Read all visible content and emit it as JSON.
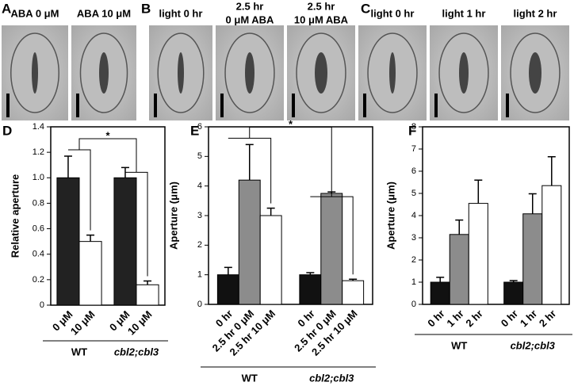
{
  "image_panels": [
    {
      "letter": "A",
      "labels": [
        [
          "ABA 0 μM"
        ],
        [
          "ABA 10 μM"
        ]
      ]
    },
    {
      "letter": "B",
      "labels": [
        [
          "light 0 hr"
        ],
        [
          "2.5 hr",
          "0 μM ABA"
        ],
        [
          "2.5 hr",
          "10 μM ABA"
        ]
      ]
    },
    {
      "letter": "C",
      "labels": [
        [
          "light 0 hr"
        ],
        [
          "light 1 hr"
        ],
        [
          "light 2 hr"
        ]
      ]
    }
  ],
  "chart_data": [
    {
      "type": "bar",
      "letter": "D",
      "ylabel": "Relative aperture",
      "categories": [
        "0 μM",
        "10 μM",
        "0 μM",
        "10 μM"
      ],
      "values": [
        1.0,
        0.5,
        1.0,
        0.16
      ],
      "errors": [
        0.17,
        0.05,
        0.08,
        0.03
      ],
      "colors": [
        "#222222",
        "#ffffff",
        "#222222",
        "#ffffff"
      ],
      "groups": [
        "WT",
        "cbl2;cbl3"
      ],
      "significance": "*",
      "ylim": [
        0,
        1.4
      ],
      "yticks": [
        0,
        0.2,
        0.4,
        0.6,
        0.8,
        {
          "value": 1,
          "label": "1.0"
        },
        1.2,
        1.4
      ]
    },
    {
      "type": "bar",
      "letter": "E",
      "ylabel": "Aperture (μm)",
      "categories": [
        "0 hr",
        "2.5 hr 0 μM",
        "2.5 hr 10 μM",
        "0 hr",
        "2.5 hr 0 μM",
        "2.5 hr 10 μM"
      ],
      "values": [
        1.0,
        4.2,
        3.0,
        1.0,
        3.75,
        0.8
      ],
      "errors": [
        0.25,
        1.2,
        0.25,
        0.07,
        0.05,
        0.05
      ],
      "colors": [
        "#111111",
        "#8c8c8c",
        "#ffffff",
        "#111111",
        "#8c8c8c",
        "#ffffff"
      ],
      "groups": [
        "WT",
        "cbl2;cbl3"
      ],
      "significance": "*",
      "ylim": [
        0,
        6
      ],
      "yticks": [
        0,
        1,
        2,
        3,
        4,
        5,
        6
      ]
    },
    {
      "type": "bar",
      "letter": "F",
      "ylabel": "Aperture (μm)",
      "categories": [
        "0 hr",
        "1 hr",
        "2 hr",
        "0 hr",
        "1 hr",
        "2 hr"
      ],
      "values": [
        1.0,
        3.15,
        4.55,
        1.0,
        4.08,
        5.35
      ],
      "errors": [
        0.22,
        0.65,
        1.05,
        0.07,
        0.9,
        1.3
      ],
      "colors": [
        "#111111",
        "#8c8c8c",
        "#ffffff",
        "#111111",
        "#8c8c8c",
        "#ffffff"
      ],
      "groups": [
        "WT",
        "cbl2;cbl3"
      ],
      "ylim": [
        0,
        8
      ],
      "yticks": [
        0,
        1,
        2,
        3,
        4,
        5,
        6,
        7,
        8
      ]
    }
  ]
}
